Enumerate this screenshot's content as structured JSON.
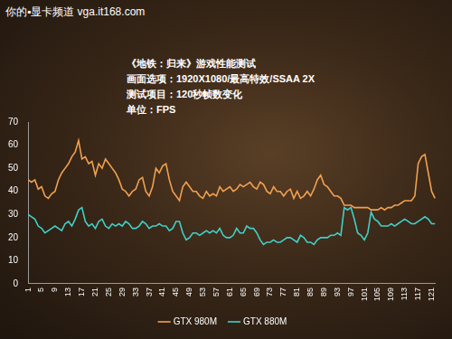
{
  "chart_data": {
    "type": "line",
    "source": "你的▪显卡频道 vga.it168.com",
    "title": "《地铁：归来》游戏性能测试",
    "subtitle": [
      "画面选项：1920X1080/最高特效/SSAA 2X",
      "测试项目：120秒帧数变化",
      "单位：FPS"
    ],
    "categories": [
      1,
      null,
      null,
      null,
      5,
      null,
      null,
      null,
      9,
      null,
      null,
      null,
      13,
      null,
      null,
      null,
      17,
      null,
      null,
      null,
      21,
      null,
      null,
      null,
      25,
      null,
      null,
      null,
      29,
      null,
      null,
      null,
      33,
      null,
      null,
      null,
      37,
      null,
      null,
      null,
      41,
      null,
      null,
      null,
      45,
      null,
      null,
      null,
      49,
      null,
      null,
      null,
      53,
      null,
      null,
      null,
      57,
      null,
      null,
      null,
      61,
      null,
      null,
      null,
      65,
      null,
      null,
      null,
      69,
      null,
      null,
      null,
      73,
      null,
      null,
      null,
      77,
      null,
      null,
      null,
      81,
      null,
      null,
      null,
      85,
      null,
      null,
      null,
      89,
      null,
      null,
      null,
      93,
      null,
      null,
      null,
      97,
      null,
      null,
      null,
      101,
      null,
      null,
      null,
      105,
      null,
      null,
      null,
      109,
      null,
      null,
      null,
      113,
      null,
      null,
      null,
      117,
      null,
      null,
      null,
      121,
      null
    ],
    "series": [
      {
        "name": "GTX 980M",
        "color": "#f0a050",
        "values": [
          45,
          44,
          45,
          41,
          42,
          38,
          37,
          39,
          40,
          45,
          48,
          50,
          52,
          55,
          57,
          62,
          54,
          55,
          52,
          53,
          47,
          52,
          50,
          54,
          52,
          50,
          48,
          45,
          41,
          40,
          38,
          40,
          41,
          45,
          46,
          40,
          38,
          42,
          50,
          48,
          51,
          52,
          45,
          40,
          38,
          36,
          42,
          44,
          42,
          40,
          40,
          38,
          37,
          40,
          38,
          39,
          38,
          42,
          40,
          41,
          42,
          40,
          41,
          43,
          42,
          43,
          44,
          42,
          41,
          44,
          43,
          40,
          39,
          42,
          40,
          40,
          38,
          40,
          41,
          37,
          40,
          37,
          38,
          40,
          38,
          41,
          45,
          47,
          43,
          42,
          40,
          38,
          38,
          37,
          34,
          34,
          34,
          33,
          33,
          33,
          33,
          33,
          32,
          32,
          32,
          33,
          32,
          33,
          33,
          34,
          34,
          35,
          36,
          36,
          36,
          38,
          52,
          55,
          56,
          48,
          40,
          37
        ]
      },
      {
        "name": "GTX 880M",
        "color": "#40d0c8",
        "values": [
          30,
          29,
          28,
          25,
          24,
          22,
          23,
          24,
          25,
          24,
          23,
          26,
          27,
          25,
          28,
          32,
          33,
          27,
          25,
          26,
          24,
          27,
          28,
          25,
          24,
          26,
          25,
          26,
          25,
          27,
          26,
          24,
          24,
          25,
          27,
          26,
          24,
          25,
          25,
          26,
          25,
          25,
          23,
          24,
          27,
          27,
          22,
          19,
          20,
          22,
          22,
          21,
          22,
          23,
          22,
          23,
          22,
          24,
          21,
          20,
          20,
          21,
          24,
          22,
          22,
          25,
          24,
          24,
          22,
          19,
          17,
          18,
          18,
          19,
          18,
          18,
          19,
          20,
          20,
          19,
          18,
          21,
          20,
          18,
          18,
          17,
          19,
          20,
          20,
          20,
          21,
          21,
          22,
          21,
          33,
          32,
          33,
          28,
          22,
          21,
          19,
          22,
          31,
          28,
          27,
          25,
          25,
          25,
          26,
          25,
          26,
          27,
          28,
          27,
          26,
          26,
          27,
          28,
          29,
          28,
          26,
          26
        ]
      }
    ],
    "ylim": [
      0,
      70
    ],
    "yticks": [
      0,
      10,
      20,
      30,
      40,
      50,
      60,
      70
    ],
    "grid": false,
    "legend": "bottom"
  }
}
